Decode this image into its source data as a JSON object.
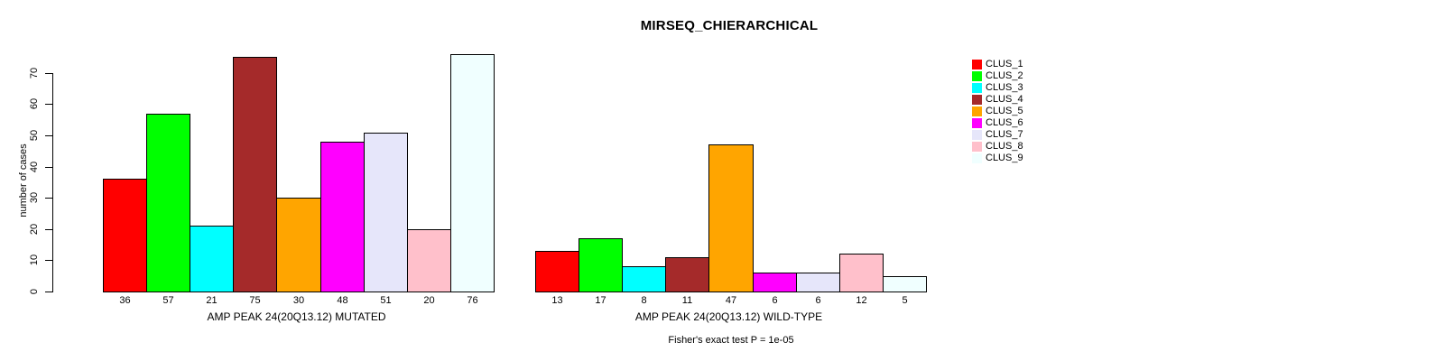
{
  "title": "MIRSEQ_CHIERARCHICAL",
  "footer": {
    "stat_text": "Fisher's exact test P = 1e-05"
  },
  "legend": {
    "items": [
      {
        "label": "CLUS_1",
        "color": "#FF0000"
      },
      {
        "label": "CLUS_2",
        "color": "#00FF00"
      },
      {
        "label": "CLUS_3",
        "color": "#00FFFF"
      },
      {
        "label": "CLUS_4",
        "color": "#A52A2A"
      },
      {
        "label": "CLUS_5",
        "color": "#FFA500"
      },
      {
        "label": "CLUS_6",
        "color": "#FF00FF"
      },
      {
        "label": "CLUS_7",
        "color": "#E6E6FA"
      },
      {
        "label": "CLUS_8",
        "color": "#FFC0CB"
      },
      {
        "label": "CLUS_9",
        "color": "#F0FFFF"
      }
    ]
  },
  "chart_data": [
    {
      "type": "bar",
      "title": "MIRSEQ_CHIERARCHICAL",
      "xlabel": "AMP PEAK 24(20Q13.12) MUTATED",
      "ylabel": "number of cases",
      "categories": [
        "36",
        "57",
        "21",
        "75",
        "30",
        "48",
        "51",
        "20",
        "76"
      ],
      "values": [
        36,
        57,
        21,
        75,
        30,
        48,
        51,
        20,
        76
      ],
      "series_labels": [
        "CLUS_1",
        "CLUS_2",
        "CLUS_3",
        "CLUS_4",
        "CLUS_5",
        "CLUS_6",
        "CLUS_7",
        "CLUS_8",
        "CLUS_9"
      ],
      "bar_colors": [
        "#FF0000",
        "#00FF00",
        "#00FFFF",
        "#A52A2A",
        "#FFA500",
        "#FF00FF",
        "#E6E6FA",
        "#FFC0CB",
        "#F0FFFF"
      ],
      "yticks": [
        0,
        10,
        20,
        30,
        40,
        50,
        60,
        70
      ],
      "ylim": [
        0,
        76
      ],
      "grid": false,
      "legend_position": "right"
    },
    {
      "type": "bar",
      "title": "",
      "xlabel": "AMP PEAK 24(20Q13.12) WILD-TYPE",
      "ylabel": "",
      "categories": [
        "13",
        "17",
        "8",
        "11",
        "47",
        "6",
        "6",
        "12",
        "5"
      ],
      "values": [
        13,
        17,
        8,
        11,
        47,
        6,
        6,
        12,
        5
      ],
      "series_labels": [
        "CLUS_1",
        "CLUS_2",
        "CLUS_3",
        "CLUS_4",
        "CLUS_5",
        "CLUS_6",
        "CLUS_7",
        "CLUS_8",
        "CLUS_9"
      ],
      "bar_colors": [
        "#FF0000",
        "#00FF00",
        "#00FFFF",
        "#A52A2A",
        "#FFA500",
        "#FF00FF",
        "#E6E6FA",
        "#FFC0CB",
        "#F0FFFF"
      ],
      "yticks": [],
      "ylim": [
        0,
        76
      ],
      "grid": false,
      "legend_position": "none"
    }
  ]
}
